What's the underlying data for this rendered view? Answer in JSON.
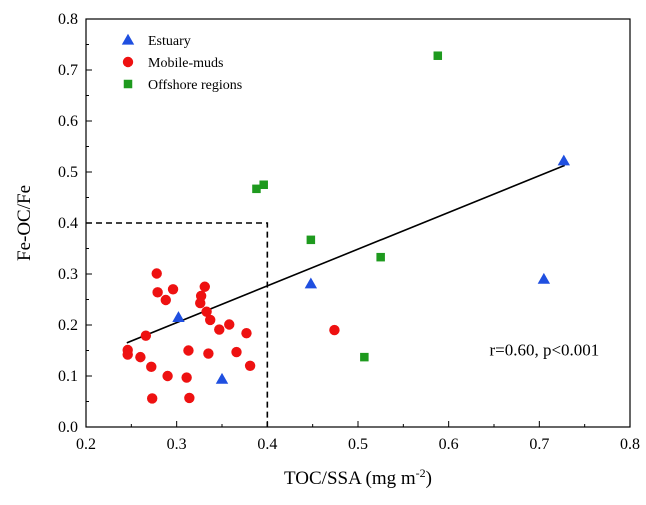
{
  "chart_data": {
    "type": "scatter",
    "xlabel": "TOC/SSA (mg m",
    "xlabel_sup": "-2",
    "xlabel_close": ")",
    "ylabel": "Fe-OC/Fe",
    "xlim": [
      0.2,
      0.8
    ],
    "ylim": [
      0.0,
      0.8
    ],
    "x_ticks": [
      "0.2",
      "0.3",
      "0.4",
      "0.5",
      "0.6",
      "0.7",
      "0.8"
    ],
    "y_ticks": [
      "0.0",
      "0.1",
      "0.2",
      "0.3",
      "0.4",
      "0.5",
      "0.6",
      "0.7",
      "0.8"
    ],
    "grid": false,
    "legend_position": "top-left",
    "series": [
      {
        "name": "Estuary",
        "marker": "triangle",
        "color": "#1f4fe0",
        "points": [
          [
            0.302,
            0.215
          ],
          [
            0.35,
            0.094
          ],
          [
            0.448,
            0.281
          ],
          [
            0.705,
            0.29
          ],
          [
            0.727,
            0.522
          ]
        ]
      },
      {
        "name": "Mobile-muds",
        "marker": "circle",
        "color": "#ee1111",
        "points": [
          [
            0.246,
            0.151
          ],
          [
            0.246,
            0.142
          ],
          [
            0.26,
            0.137
          ],
          [
            0.266,
            0.179
          ],
          [
            0.272,
            0.118
          ],
          [
            0.273,
            0.056
          ],
          [
            0.278,
            0.301
          ],
          [
            0.279,
            0.264
          ],
          [
            0.288,
            0.249
          ],
          [
            0.29,
            0.1
          ],
          [
            0.296,
            0.27
          ],
          [
            0.311,
            0.097
          ],
          [
            0.313,
            0.15
          ],
          [
            0.314,
            0.057
          ],
          [
            0.326,
            0.243
          ],
          [
            0.327,
            0.257
          ],
          [
            0.331,
            0.275
          ],
          [
            0.333,
            0.226
          ],
          [
            0.335,
            0.144
          ],
          [
            0.337,
            0.21
          ],
          [
            0.347,
            0.191
          ],
          [
            0.358,
            0.201
          ],
          [
            0.366,
            0.147
          ],
          [
            0.377,
            0.184
          ],
          [
            0.381,
            0.12
          ],
          [
            0.474,
            0.19
          ]
        ]
      },
      {
        "name": "Offshore regions",
        "marker": "square",
        "color": "#1e9a1e",
        "points": [
          [
            0.388,
            0.467
          ],
          [
            0.396,
            0.475
          ],
          [
            0.448,
            0.367
          ],
          [
            0.507,
            0.137
          ],
          [
            0.525,
            0.333
          ],
          [
            0.588,
            0.728
          ]
        ]
      }
    ],
    "trend_line": {
      "x": [
        0.245,
        0.728
      ],
      "y": [
        0.165,
        0.513
      ]
    },
    "dashed_box": {
      "x_max": 0.4,
      "y_max": 0.4
    },
    "annotation": "r=0.60, p<0.001",
    "annotation_position": [
      0.645,
      0.14
    ]
  }
}
